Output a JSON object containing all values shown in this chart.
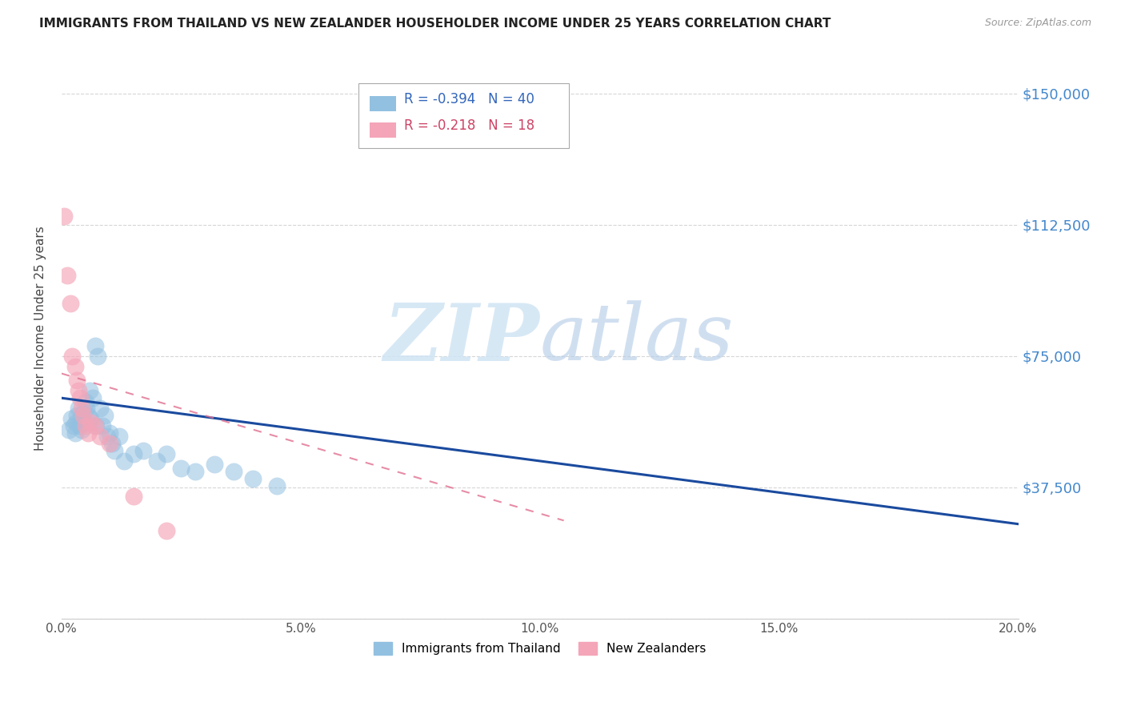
{
  "title": "IMMIGRANTS FROM THAILAND VS NEW ZEALANDER HOUSEHOLDER INCOME UNDER 25 YEARS CORRELATION CHART",
  "source": "Source: ZipAtlas.com",
  "ylabel": "Householder Income Under 25 years",
  "xlabel_ticks": [
    "0.0%",
    "",
    "",
    "",
    "",
    "",
    "",
    "",
    "",
    "",
    "5.0%",
    "",
    "",
    "",
    "",
    "",
    "",
    "",
    "",
    "",
    "10.0%",
    "",
    "",
    "",
    "",
    "",
    "",
    "",
    "",
    "",
    "15.0%",
    "",
    "",
    "",
    "",
    "",
    "",
    "",
    "",
    "",
    "20.0%"
  ],
  "xlabel_vals": [
    0.0,
    0.5,
    1.0,
    1.5,
    2.0,
    2.5,
    3.0,
    3.5,
    4.0,
    4.5,
    5.0,
    5.5,
    6.0,
    6.5,
    7.0,
    7.5,
    8.0,
    8.5,
    9.0,
    9.5,
    10.0,
    10.5,
    11.0,
    11.5,
    12.0,
    12.5,
    13.0,
    13.5,
    14.0,
    14.5,
    15.0,
    15.5,
    16.0,
    16.5,
    17.0,
    17.5,
    18.0,
    18.5,
    19.0,
    19.5,
    20.0
  ],
  "xtick_major_vals": [
    0.0,
    5.0,
    10.0,
    15.0,
    20.0
  ],
  "xtick_major_labels": [
    "0.0%",
    "5.0%",
    "10.0%",
    "15.0%",
    "20.0%"
  ],
  "ytick_vals": [
    0,
    37500,
    75000,
    112500,
    150000
  ],
  "ytick_labels": [
    "",
    "$37,500",
    "$75,000",
    "$112,500",
    "$150,000"
  ],
  "xlim": [
    0.0,
    20.0
  ],
  "ylim": [
    0,
    160000
  ],
  "blue_R": -0.394,
  "blue_N": 40,
  "pink_R": -0.218,
  "pink_N": 18,
  "blue_color": "#92c0e0",
  "pink_color": "#f4a5b8",
  "trendline_blue": "#1a4a9e",
  "trendline_pink": "#e07090",
  "legend_blue_label": "Immigrants from Thailand",
  "legend_pink_label": "New Zealanders",
  "watermark_zip": "ZIP",
  "watermark_atlas": "atlas",
  "blue_scatter_x": [
    0.15,
    0.2,
    0.25,
    0.28,
    0.3,
    0.32,
    0.35,
    0.38,
    0.4,
    0.42,
    0.45,
    0.48,
    0.5,
    0.52,
    0.55,
    0.58,
    0.6,
    0.65,
    0.7,
    0.72,
    0.75,
    0.8,
    0.85,
    0.9,
    0.95,
    1.0,
    1.05,
    1.1,
    1.2,
    1.3,
    1.5,
    1.7,
    2.0,
    2.2,
    2.5,
    2.8,
    3.2,
    3.6,
    4.0,
    4.5
  ],
  "blue_scatter_y": [
    54000,
    57000,
    55000,
    53000,
    56000,
    58000,
    60000,
    55000,
    57000,
    54000,
    59000,
    56000,
    62000,
    60000,
    58000,
    65000,
    57000,
    63000,
    78000,
    55000,
    75000,
    60000,
    55000,
    58000,
    52000,
    53000,
    50000,
    48000,
    52000,
    45000,
    47000,
    48000,
    45000,
    47000,
    43000,
    42000,
    44000,
    42000,
    40000,
    38000
  ],
  "pink_scatter_x": [
    0.05,
    0.12,
    0.18,
    0.22,
    0.28,
    0.32,
    0.35,
    0.38,
    0.42,
    0.45,
    0.5,
    0.55,
    0.6,
    0.7,
    0.8,
    1.0,
    1.5,
    2.2
  ],
  "pink_scatter_y": [
    115000,
    98000,
    90000,
    75000,
    72000,
    68000,
    65000,
    63000,
    60000,
    58000,
    55000,
    53000,
    56000,
    55000,
    52000,
    50000,
    35000,
    25000
  ],
  "blue_trend_x0": 0.0,
  "blue_trend_x1": 20.0,
  "blue_trend_y0": 63000,
  "blue_trend_y1": 27000,
  "pink_trend_x0": 0.0,
  "pink_trend_x1": 10.5,
  "pink_trend_y0": 70000,
  "pink_trend_y1": 28000
}
